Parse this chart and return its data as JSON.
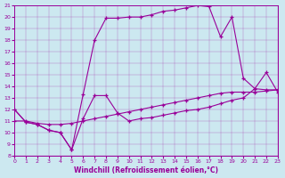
{
  "xlabel": "Windchill (Refroidissement éolien,°C)",
  "background_color": "#cce8f0",
  "line_color": "#990099",
  "xmin": 0,
  "xmax": 23,
  "ymin": 8,
  "ymax": 21,
  "curve1_x": [
    0,
    1,
    2,
    3,
    4,
    5,
    6,
    7,
    8,
    9,
    10,
    11,
    12,
    13,
    14,
    15,
    16,
    17,
    18,
    19,
    20,
    21,
    22,
    23
  ],
  "curve1_y": [
    12.0,
    10.9,
    10.7,
    10.2,
    10.0,
    8.5,
    13.3,
    18.0,
    19.9,
    19.9,
    20.0,
    20.0,
    20.2,
    20.5,
    20.6,
    20.8,
    21.0,
    20.9,
    18.3,
    20.0,
    14.7,
    13.8,
    13.7,
    13.7
  ],
  "curve2_x": [
    0,
    1,
    2,
    3,
    4,
    5,
    6,
    7,
    8,
    9,
    10,
    11,
    12,
    13,
    14,
    15,
    16,
    17,
    18,
    19,
    20,
    21,
    22,
    23
  ],
  "curve2_y": [
    12.0,
    10.9,
    10.7,
    10.2,
    10.0,
    8.5,
    11.2,
    13.2,
    13.2,
    11.7,
    11.0,
    11.2,
    11.3,
    11.5,
    11.7,
    11.9,
    12.0,
    12.2,
    12.5,
    12.8,
    13.0,
    13.8,
    15.2,
    13.5
  ],
  "curve3_x": [
    0,
    1,
    2,
    3,
    4,
    5,
    6,
    7,
    8,
    9,
    10,
    11,
    12,
    13,
    14,
    15,
    16,
    17,
    18,
    19,
    20,
    21,
    22,
    23
  ],
  "curve3_y": [
    11.0,
    11.0,
    10.8,
    10.7,
    10.7,
    10.8,
    11.0,
    11.2,
    11.4,
    11.6,
    11.8,
    12.0,
    12.2,
    12.4,
    12.6,
    12.8,
    13.0,
    13.2,
    13.4,
    13.5,
    13.5,
    13.5,
    13.6,
    13.7
  ]
}
